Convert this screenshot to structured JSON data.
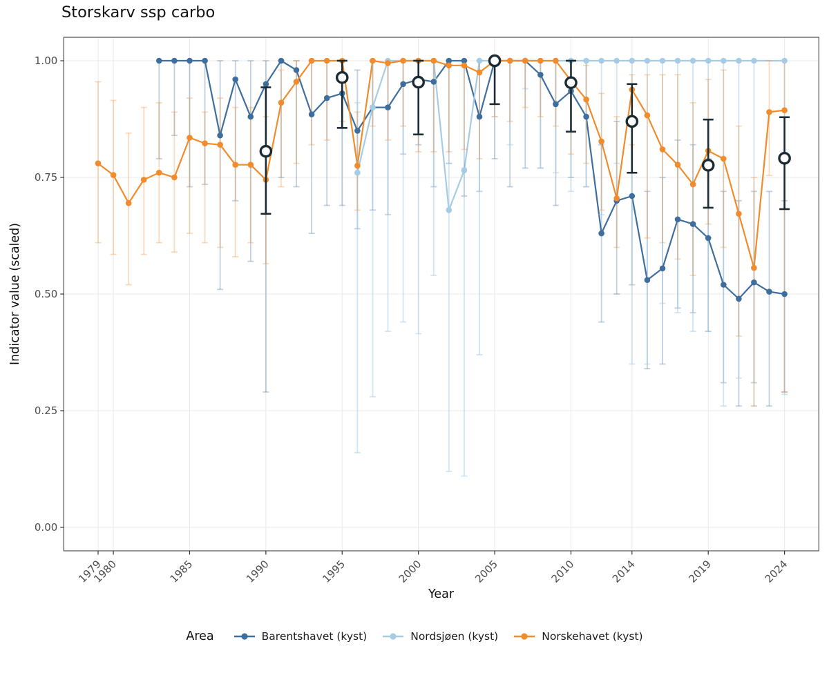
{
  "chart_data": {
    "type": "line",
    "title": "Storskarv ssp carbo",
    "xlabel": "Year",
    "ylabel": "Indicator value (scaled)",
    "legend_title": "Area",
    "legend_position": "bottom",
    "grid": true,
    "x_ticks": [
      "1979",
      "1980",
      "1985",
      "1990",
      "1995",
      "2000",
      "2005",
      "2010",
      "2014",
      "2019",
      "2024"
    ],
    "y_ticks": [
      "0.00",
      "0.25",
      "0.50",
      "0.75",
      "1.00"
    ],
    "x_range": [
      1979,
      2024
    ],
    "ylim": [
      0,
      1
    ],
    "years": [
      1979,
      1980,
      1981,
      1982,
      1983,
      1984,
      1985,
      1986,
      1987,
      1988,
      1989,
      1990,
      1991,
      1992,
      1993,
      1994,
      1995,
      1996,
      1997,
      1998,
      1999,
      2000,
      2001,
      2002,
      2003,
      2004,
      2005,
      2006,
      2007,
      2008,
      2009,
      2010,
      2011,
      2012,
      2013,
      2014,
      2015,
      2016,
      2017,
      2018,
      2019,
      2020,
      2021,
      2022,
      2023,
      2024
    ],
    "series": [
      {
        "name": "Barentshavet (kyst)",
        "color": "#3E6E9E",
        "ci_color": "rgba(62,110,158,0.32)",
        "values": [
          null,
          null,
          null,
          null,
          1.0,
          1.0,
          1.0,
          1.0,
          0.84,
          0.96,
          0.88,
          0.95,
          1.0,
          0.98,
          0.885,
          0.92,
          0.93,
          0.85,
          0.9,
          0.9,
          0.95,
          0.96,
          0.955,
          1.0,
          1.0,
          0.88,
          1.0,
          1.0,
          1.0,
          0.97,
          0.907,
          0.935,
          0.88,
          0.63,
          0.7,
          0.71,
          0.53,
          0.555,
          0.66,
          0.65,
          0.62,
          0.52,
          0.49,
          0.525,
          0.505,
          0.5
        ],
        "ci": [
          null,
          null,
          null,
          null,
          [
            0.79,
            1.0
          ],
          [
            0.84,
            1.0
          ],
          [
            0.73,
            1.0
          ],
          [
            0.735,
            1.0
          ],
          [
            0.51,
            1.0
          ],
          [
            0.7,
            1.0
          ],
          [
            0.57,
            1.0
          ],
          [
            0.29,
            1.0
          ],
          [
            0.75,
            1.0
          ],
          [
            0.73,
            1.0
          ],
          [
            0.63,
            1.0
          ],
          [
            0.69,
            1.0
          ],
          [
            0.69,
            1.0
          ],
          [
            0.64,
            0.98
          ],
          [
            0.68,
            1.0
          ],
          [
            0.67,
            1.0
          ],
          [
            0.8,
            1.0
          ],
          [
            0.82,
            1.0
          ],
          [
            0.73,
            1.0
          ],
          [
            0.78,
            1.0
          ],
          [
            0.71,
            1.0
          ],
          [
            0.72,
            1.0
          ],
          [
            0.79,
            1.0
          ],
          [
            0.73,
            1.0
          ],
          [
            0.77,
            1.0
          ],
          [
            0.77,
            1.0
          ],
          [
            0.69,
            1.0
          ],
          [
            0.75,
            1.0
          ],
          [
            0.73,
            1.0
          ],
          [
            0.44,
            0.82
          ],
          [
            0.5,
            0.87
          ],
          [
            0.52,
            0.87
          ],
          [
            0.34,
            0.72
          ],
          [
            0.35,
            0.75
          ],
          [
            0.47,
            0.83
          ],
          [
            0.46,
            0.82
          ],
          [
            0.42,
            0.79
          ],
          [
            0.31,
            0.72
          ],
          [
            0.26,
            0.7
          ],
          [
            0.31,
            0.72
          ],
          [
            0.26,
            0.72
          ],
          [
            0.29,
            0.7
          ]
        ]
      },
      {
        "name": "Nordsjøen (kyst)",
        "color": "#A6CCE5",
        "ci_color": "rgba(166,204,229,0.5)",
        "values": [
          null,
          null,
          null,
          null,
          null,
          null,
          null,
          null,
          null,
          null,
          null,
          null,
          null,
          null,
          null,
          null,
          null,
          0.76,
          0.9,
          1.0,
          1.0,
          1.0,
          1.0,
          0.68,
          0.765,
          1.0,
          1.0,
          1.0,
          1.0,
          1.0,
          1.0,
          1.0,
          1.0,
          1.0,
          1.0,
          1.0,
          1.0,
          1.0,
          1.0,
          1.0,
          1.0,
          1.0,
          1.0,
          1.0,
          null,
          1.0
        ],
        "ci": [
          null,
          null,
          null,
          null,
          null,
          null,
          null,
          null,
          null,
          null,
          null,
          null,
          null,
          null,
          null,
          null,
          null,
          [
            0.16,
            0.91
          ],
          [
            0.28,
            1.0
          ],
          [
            0.42,
            1.0
          ],
          [
            0.44,
            1.0
          ],
          [
            0.415,
            1.0
          ],
          [
            0.54,
            1.0
          ],
          [
            0.12,
            0.78
          ],
          [
            0.11,
            0.77
          ],
          [
            0.37,
            1.0
          ],
          [
            0.88,
            1.0
          ],
          [
            0.82,
            1.0
          ],
          [
            0.94,
            1.0
          ],
          [
            0.77,
            1.0
          ],
          [
            0.76,
            1.0
          ],
          [
            0.72,
            1.0
          ],
          [
            0.73,
            1.0
          ],
          [
            0.67,
            1.0
          ],
          [
            0.78,
            1.0
          ],
          [
            0.35,
            1.0
          ],
          [
            0.35,
            1.0
          ],
          [
            0.48,
            1.0
          ],
          [
            0.46,
            1.0
          ],
          [
            0.42,
            1.0
          ],
          [
            0.42,
            1.0
          ],
          [
            0.26,
            1.0
          ],
          [
            0.32,
            1.0
          ],
          [
            0.26,
            1.0
          ],
          null,
          [
            0.285,
            1.0
          ]
        ]
      },
      {
        "name": "Norskehavet (kyst)",
        "color": "#F18B2C",
        "ci_color": "rgba(241,139,44,0.32)",
        "values": [
          0.78,
          0.755,
          0.695,
          0.745,
          0.76,
          0.75,
          0.835,
          0.823,
          0.82,
          0.777,
          0.777,
          0.745,
          0.91,
          0.955,
          1.0,
          1.0,
          1.0,
          0.775,
          1.0,
          0.995,
          1.0,
          1.0,
          1.0,
          0.99,
          0.99,
          0.975,
          1.0,
          1.0,
          1.0,
          1.0,
          1.0,
          0.957,
          0.917,
          0.827,
          0.705,
          0.938,
          0.883,
          0.81,
          0.777,
          0.735,
          0.807,
          0.79,
          0.672,
          0.556,
          0.89,
          0.894
        ],
        "ci": [
          [
            0.61,
            0.955
          ],
          [
            0.585,
            0.915
          ],
          [
            0.52,
            0.845
          ],
          [
            0.585,
            0.9
          ],
          [
            0.61,
            0.91
          ],
          [
            0.59,
            0.89
          ],
          [
            0.63,
            0.92
          ],
          [
            0.61,
            0.89
          ],
          [
            0.6,
            0.92
          ],
          [
            0.58,
            0.9
          ],
          [
            0.61,
            0.9
          ],
          [
            0.565,
            0.88
          ],
          [
            0.73,
            0.98
          ],
          [
            0.78,
            1.0
          ],
          [
            0.82,
            1.0
          ],
          [
            0.83,
            1.0
          ],
          [
            0.87,
            1.0
          ],
          [
            0.68,
            0.89
          ],
          [
            0.86,
            1.0
          ],
          [
            0.83,
            1.0
          ],
          [
            0.86,
            1.0
          ],
          [
            0.805,
            1.0
          ],
          [
            0.805,
            1.0
          ],
          [
            0.805,
            1.0
          ],
          [
            0.81,
            1.0
          ],
          [
            0.79,
            1.0
          ],
          [
            0.88,
            1.0
          ],
          [
            0.87,
            1.0
          ],
          [
            0.9,
            1.0
          ],
          [
            0.88,
            1.0
          ],
          [
            0.86,
            1.0
          ],
          [
            0.8,
            1.0
          ],
          [
            0.78,
            0.99
          ],
          [
            0.68,
            0.93
          ],
          [
            0.6,
            0.88
          ],
          [
            0.82,
            0.97
          ],
          [
            0.62,
            0.97
          ],
          [
            0.61,
            0.97
          ],
          [
            0.575,
            0.97
          ],
          [
            0.54,
            0.91
          ],
          [
            0.65,
            0.96
          ],
          [
            0.6,
            0.98
          ],
          [
            0.41,
            0.86
          ],
          [
            0.26,
            0.75
          ],
          [
            0.754,
            1.0
          ],
          [
            0.29,
            1.0
          ]
        ]
      }
    ],
    "assessment_points": {
      "color": "#1A2B33",
      "years": [
        1990,
        1995,
        2000,
        2005,
        2010,
        2014,
        2019,
        2024
      ],
      "values": [
        0.806,
        0.964,
        0.954,
        1.0,
        0.953,
        0.87,
        0.776,
        0.791
      ],
      "ci": [
        [
          0.672,
          0.943
        ],
        [
          0.856,
          1.0
        ],
        [
          0.842,
          1.0
        ],
        [
          0.907,
          1.0
        ],
        [
          0.848,
          1.0
        ],
        [
          0.76,
          0.95
        ],
        [
          0.685,
          0.874
        ],
        [
          0.682,
          0.879
        ]
      ]
    }
  }
}
